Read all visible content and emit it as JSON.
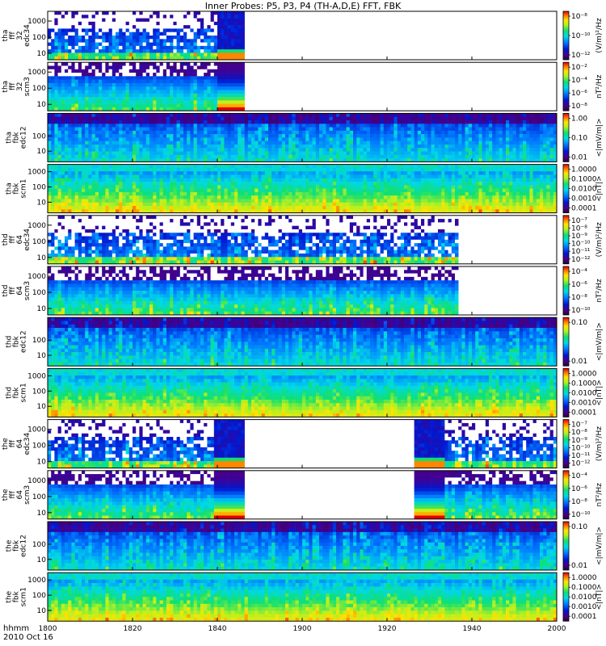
{
  "chart_data": {
    "type": "heatmap",
    "title": "Inner Probes: P5, P3, P4 (TH-A,D,E) FFT, FBK",
    "x_tick_labels": [
      "1800",
      "1820",
      "1840",
      "1900",
      "1920",
      "1940",
      "2000"
    ],
    "x_minutes": [
      0,
      20,
      40,
      60,
      80,
      100,
      120
    ],
    "x_range_minutes": [
      0,
      120
    ],
    "footer": {
      "line1": "hhmm",
      "line2": "2010 Oct 16"
    },
    "panels": [
      {
        "ylabel": [
          "tha",
          "fff",
          "32",
          "edc34"
        ],
        "yticks": [
          "1000",
          "100",
          "10"
        ],
        "ylog": [
          4,
          4000
        ],
        "colorbar_label": "(V/m)²/Hz",
        "colorbar_ticks": [
          "10⁻⁸",
          "10⁻¹⁰",
          "10⁻¹²"
        ],
        "coverage": [
          [
            0,
            46
          ]
        ],
        "tail_block": [
          40,
          46
        ],
        "style": "sparse_high"
      },
      {
        "ylabel": [
          "tha",
          "fff",
          "32",
          "scm3"
        ],
        "yticks": [
          "1000",
          "100",
          "10"
        ],
        "ylog": [
          4,
          4000
        ],
        "colorbar_label": "nT²/Hz",
        "colorbar_ticks": [
          "10⁻²",
          "10⁻⁴",
          "10⁻⁶",
          "10⁻⁸"
        ],
        "coverage": [
          [
            0,
            46
          ]
        ],
        "tail_block": [
          40,
          46
        ],
        "style": "mag_fff"
      },
      {
        "ylabel": [
          "tha",
          "fbk",
          "edc12"
        ],
        "yticks": [
          "100",
          "10"
        ],
        "ylog": [
          2,
          3000
        ],
        "colorbar_label": "<|mV/m|>",
        "colorbar_ticks": [
          "1.00",
          "0.10",
          "0.01"
        ],
        "coverage": [
          [
            0,
            120
          ]
        ],
        "style": "fbk_e"
      },
      {
        "ylabel": [
          "tha",
          "fbk",
          "scm1"
        ],
        "yticks": [
          "1000",
          "100",
          "10"
        ],
        "ylog": [
          2,
          3000
        ],
        "colorbar_label": "<|nT|>",
        "colorbar_ticks": [
          "1.0000",
          "0.1000",
          "0.0100",
          "0.0010",
          "0.0001"
        ],
        "coverage": [
          [
            0,
            120
          ]
        ],
        "style": "fbk_b"
      },
      {
        "ylabel": [
          "thd",
          "fff",
          "64",
          "edc34"
        ],
        "yticks": [
          "1000",
          "100",
          "10"
        ],
        "ylog": [
          4,
          4000
        ],
        "colorbar_label": "(V/m)²/Hz",
        "colorbar_ticks": [
          "10⁻⁷",
          "10⁻⁸",
          "10⁻⁹",
          "10⁻¹⁰",
          "10⁻¹¹",
          "10⁻¹²"
        ],
        "coverage": [
          [
            0,
            96
          ]
        ],
        "style": "sparse_high"
      },
      {
        "ylabel": [
          "thd",
          "fff",
          "64",
          "scm3"
        ],
        "yticks": [
          "1000",
          "100",
          "10"
        ],
        "ylog": [
          4,
          4000
        ],
        "colorbar_label": "nT²/Hz",
        "colorbar_ticks": [
          "10⁻⁴",
          "10⁻⁶",
          "10⁻⁸",
          "10⁻¹⁰"
        ],
        "coverage": [
          [
            0,
            96
          ]
        ],
        "style": "mag_fff"
      },
      {
        "ylabel": [
          "thd",
          "fbk",
          "edc12"
        ],
        "yticks": [
          "100",
          "10"
        ],
        "ylog": [
          2,
          3000
        ],
        "colorbar_label": "<|mV/m|>",
        "colorbar_ticks": [
          "0.10",
          "0.01"
        ],
        "coverage": [
          [
            0,
            120
          ]
        ],
        "style": "fbk_e"
      },
      {
        "ylabel": [
          "thd",
          "fbk",
          "scm1"
        ],
        "yticks": [
          "1000",
          "100",
          "10"
        ],
        "ylog": [
          2,
          3000
        ],
        "colorbar_label": "<|nT|>",
        "colorbar_ticks": [
          "1.0000",
          "0.1000",
          "0.0100",
          "0.0010",
          "0.0001"
        ],
        "coverage": [
          [
            0,
            120
          ]
        ],
        "style": "fbk_b"
      },
      {
        "ylabel": [
          "the",
          "fff",
          "64",
          "edc34"
        ],
        "yticks": [
          "1000",
          "100",
          "10"
        ],
        "ylog": [
          4,
          4000
        ],
        "colorbar_label": "(V/m)²/Hz",
        "colorbar_ticks": [
          "10⁻⁷",
          "10⁻⁸",
          "10⁻⁹",
          "10⁻¹⁰",
          "10⁻¹¹",
          "10⁻¹²"
        ],
        "coverage": [
          [
            0,
            46
          ],
          [
            86,
            120
          ]
        ],
        "tail_block": [
          39,
          46
        ],
        "head_block": [
          86,
          93
        ],
        "style": "sparse_high"
      },
      {
        "ylabel": [
          "the",
          "fff",
          "64",
          "scm3"
        ],
        "yticks": [
          "1000",
          "100",
          "10"
        ],
        "ylog": [
          4,
          4000
        ],
        "colorbar_label": "nT²/Hz",
        "colorbar_ticks": [
          "10⁻⁴",
          "10⁻⁶",
          "10⁻⁸",
          "10⁻¹⁰"
        ],
        "coverage": [
          [
            0,
            46
          ],
          [
            86,
            120
          ]
        ],
        "tail_block": [
          39,
          46
        ],
        "head_block": [
          86,
          93
        ],
        "style": "mag_fff"
      },
      {
        "ylabel": [
          "the",
          "fbk",
          "edc12"
        ],
        "yticks": [
          "100",
          "10"
        ],
        "ylog": [
          2,
          3000
        ],
        "colorbar_label": "<|mV/m|>",
        "colorbar_ticks": [
          "0.10",
          "0.01"
        ],
        "coverage": [
          [
            0,
            120
          ]
        ],
        "style": "fbk_e"
      },
      {
        "ylabel": [
          "the",
          "fbk",
          "scm1"
        ],
        "yticks": [
          "1000",
          "100",
          "10"
        ],
        "ylog": [
          2,
          3000
        ],
        "colorbar_label": "<|nT|>",
        "colorbar_ticks": [
          "1.0000",
          "0.1000",
          "0.0100",
          "0.0010",
          "0.0001"
        ],
        "coverage": [
          [
            0,
            120
          ]
        ],
        "style": "fbk_b"
      }
    ]
  }
}
